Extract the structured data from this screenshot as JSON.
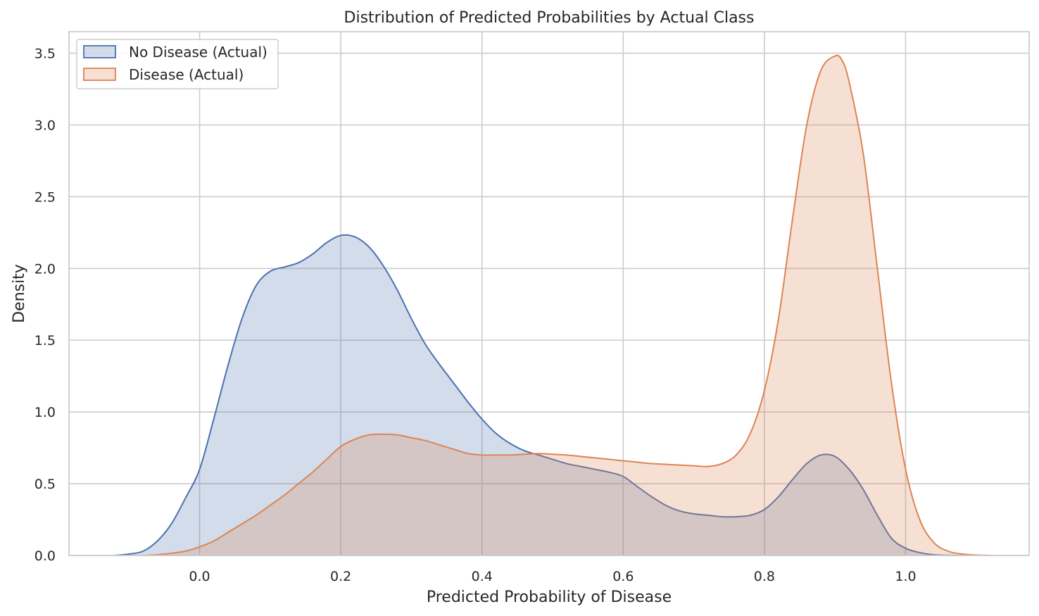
{
  "chart_data": {
    "type": "area",
    "title": "Distribution of Predicted Probabilities by Actual Class",
    "xlabel": "Predicted Probability of Disease",
    "ylabel": "Density",
    "xlim": [
      -0.185,
      1.175
    ],
    "ylim": [
      0.0,
      3.65
    ],
    "x_ticks": [
      "0.0",
      "0.2",
      "0.4",
      "0.6",
      "0.8",
      "1.0"
    ],
    "y_ticks": [
      "0.0",
      "0.5",
      "1.0",
      "1.5",
      "2.0",
      "2.5",
      "3.0",
      "3.5"
    ],
    "grid": true,
    "legend_position": "upper-left",
    "series": [
      {
        "name": "No Disease (Actual)",
        "line_color": "#4c72b0",
        "fill_color": "#4c72b0",
        "fill_opacity": 0.25,
        "x": [
          -0.12,
          -0.1,
          -0.08,
          -0.06,
          -0.04,
          -0.02,
          0.0,
          0.02,
          0.04,
          0.06,
          0.08,
          0.1,
          0.12,
          0.14,
          0.16,
          0.18,
          0.2,
          0.22,
          0.24,
          0.26,
          0.28,
          0.3,
          0.32,
          0.34,
          0.36,
          0.38,
          0.4,
          0.42,
          0.44,
          0.46,
          0.48,
          0.5,
          0.52,
          0.54,
          0.56,
          0.58,
          0.6,
          0.62,
          0.64,
          0.66,
          0.68,
          0.7,
          0.72,
          0.74,
          0.76,
          0.78,
          0.8,
          0.82,
          0.84,
          0.86,
          0.88,
          0.9,
          0.92,
          0.94,
          0.96,
          0.98,
          1.0,
          1.02,
          1.04,
          1.06,
          1.08
        ],
        "y": [
          0.0,
          0.01,
          0.03,
          0.1,
          0.22,
          0.4,
          0.6,
          0.95,
          1.32,
          1.65,
          1.88,
          1.98,
          2.01,
          2.04,
          2.1,
          2.18,
          2.23,
          2.22,
          2.15,
          2.02,
          1.85,
          1.65,
          1.47,
          1.33,
          1.2,
          1.07,
          0.95,
          0.85,
          0.78,
          0.73,
          0.7,
          0.67,
          0.64,
          0.62,
          0.6,
          0.58,
          0.55,
          0.48,
          0.41,
          0.35,
          0.31,
          0.29,
          0.28,
          0.27,
          0.27,
          0.28,
          0.32,
          0.41,
          0.53,
          0.64,
          0.7,
          0.69,
          0.6,
          0.46,
          0.28,
          0.12,
          0.05,
          0.02,
          0.005,
          0.001,
          0.0
        ]
      },
      {
        "name": "Disease (Actual)",
        "line_color": "#dd8452",
        "fill_color": "#dd8452",
        "fill_opacity": 0.25,
        "x": [
          -0.08,
          -0.06,
          -0.04,
          -0.02,
          0.0,
          0.02,
          0.04,
          0.06,
          0.08,
          0.1,
          0.12,
          0.14,
          0.16,
          0.18,
          0.2,
          0.22,
          0.24,
          0.26,
          0.28,
          0.3,
          0.32,
          0.34,
          0.36,
          0.38,
          0.4,
          0.42,
          0.44,
          0.46,
          0.48,
          0.5,
          0.52,
          0.54,
          0.56,
          0.58,
          0.6,
          0.62,
          0.64,
          0.66,
          0.68,
          0.7,
          0.72,
          0.74,
          0.76,
          0.78,
          0.8,
          0.82,
          0.84,
          0.86,
          0.88,
          0.9,
          0.91,
          0.92,
          0.94,
          0.96,
          0.98,
          1.0,
          1.02,
          1.04,
          1.06,
          1.08,
          1.1,
          1.12
        ],
        "y": [
          0.0,
          0.005,
          0.015,
          0.03,
          0.06,
          0.1,
          0.16,
          0.22,
          0.28,
          0.35,
          0.42,
          0.5,
          0.58,
          0.67,
          0.76,
          0.81,
          0.84,
          0.845,
          0.84,
          0.82,
          0.8,
          0.77,
          0.74,
          0.71,
          0.7,
          0.7,
          0.7,
          0.705,
          0.71,
          0.705,
          0.7,
          0.69,
          0.68,
          0.67,
          0.66,
          0.65,
          0.64,
          0.635,
          0.63,
          0.625,
          0.62,
          0.64,
          0.7,
          0.85,
          1.15,
          1.65,
          2.35,
          3.0,
          3.38,
          3.48,
          3.45,
          3.3,
          2.8,
          2.0,
          1.2,
          0.6,
          0.25,
          0.09,
          0.03,
          0.01,
          0.003,
          0.0
        ]
      }
    ]
  }
}
